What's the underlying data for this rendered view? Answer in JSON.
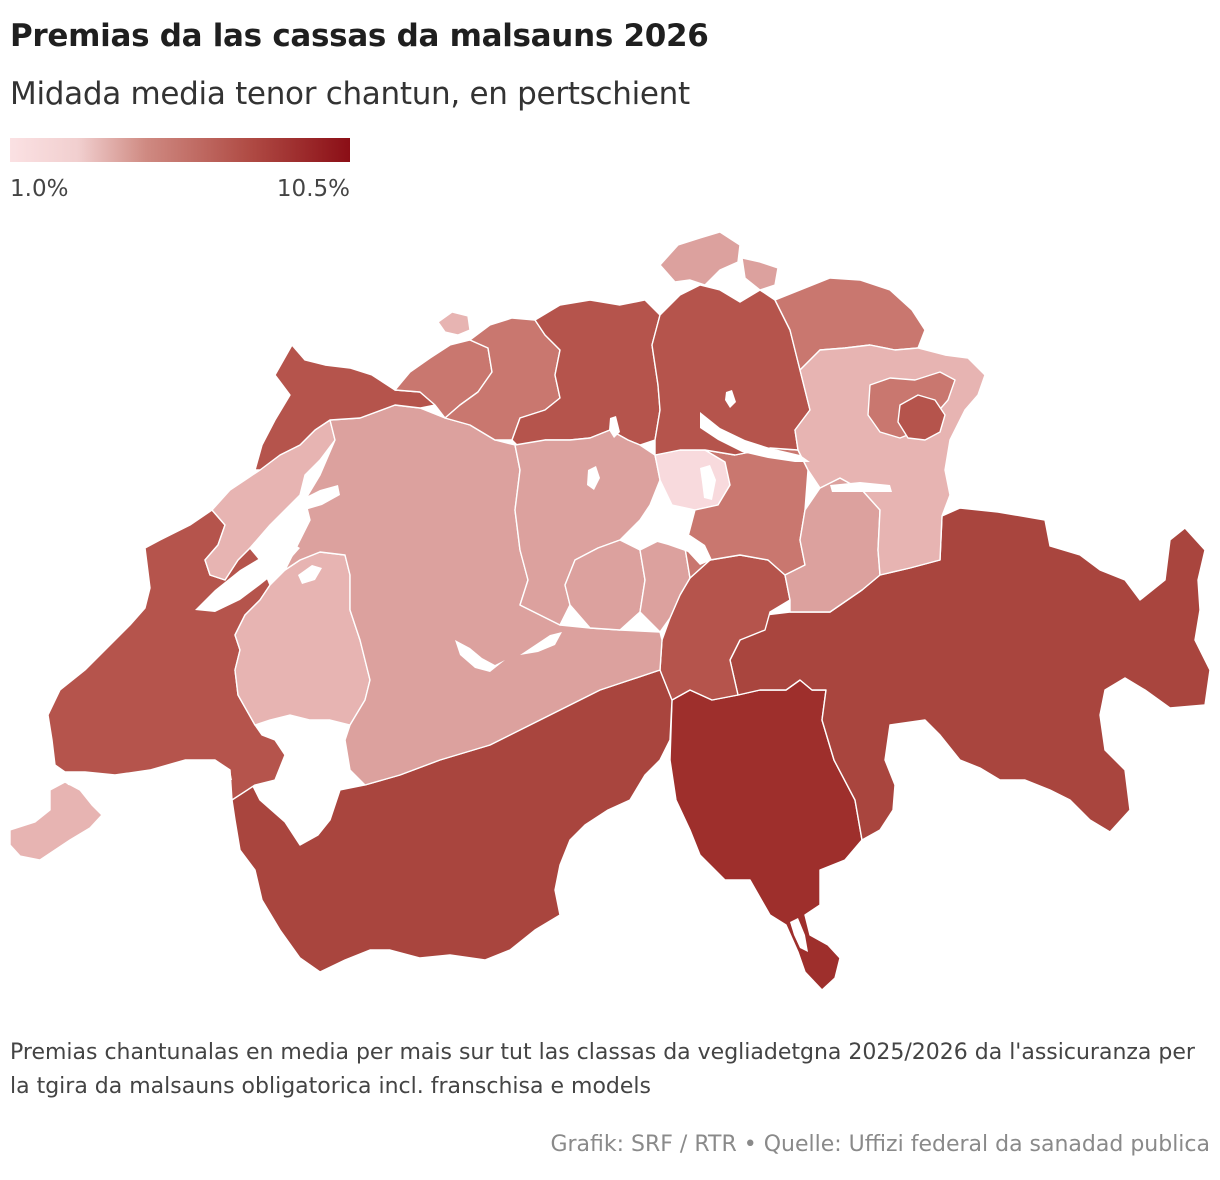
{
  "title": "Premias da las cassas da malsauns 2026",
  "subtitle": "Midada media tenor chantun, en pertschient",
  "legend": {
    "min_label": "1.0%",
    "max_label": "10.5%",
    "min_value": 1.0,
    "max_value": 10.5,
    "color_min": "#fbe1e3",
    "color_max": "#8b0e16"
  },
  "note": "Premias chantunalas en media per mais sur tut las classas da vegliadetgna 2025/2026 da l'assicuranza per la tgira da malsauns obligatorica incl. franschisa e models",
  "credit": "Grafik: SRF / RTR • Quelle: Uffizi federal da sanadad publica",
  "map_colors": {
    "lightest": "#f8dadd",
    "light": "#e7b4b2",
    "light_mid": "#dca19e",
    "mid": "#c9776f",
    "mid_dark": "#b5544c",
    "dark": "#a9453e",
    "darkest": "#9e2f2c",
    "lake": "#ffffff"
  },
  "regions": [
    {
      "name": "Schaffhausen",
      "color": "#dca19e"
    },
    {
      "name": "Basel-Stadt",
      "color": "#e7b4b2"
    },
    {
      "name": "Basel-Landschaft",
      "color": "#c9776f"
    },
    {
      "name": "Jura",
      "color": "#b5544c"
    },
    {
      "name": "Solothurn",
      "color": "#c9776f"
    },
    {
      "name": "Aargau",
      "color": "#b5544c"
    },
    {
      "name": "Zürich",
      "color": "#b5544c"
    },
    {
      "name": "Thurgau",
      "color": "#c9776f"
    },
    {
      "name": "St. Gallen",
      "color": "#e7b4b2"
    },
    {
      "name": "Appenzell Ausserrhoden",
      "color": "#c9776f"
    },
    {
      "name": "Appenzell Innerrhoden",
      "color": "#b5544c"
    },
    {
      "name": "Zug",
      "color": "#f8dadd"
    },
    {
      "name": "Schwyz",
      "color": "#c9776f"
    },
    {
      "name": "Glarus",
      "color": "#dca19e"
    },
    {
      "name": "Luzern",
      "color": "#dca19e"
    },
    {
      "name": "Obwalden",
      "color": "#dca19e"
    },
    {
      "name": "Nidwalden",
      "color": "#dca19e"
    },
    {
      "name": "Uri",
      "color": "#b5544c"
    },
    {
      "name": "Bern",
      "color": "#dca19e"
    },
    {
      "name": "Neuchâtel",
      "color": "#e7b4b2"
    },
    {
      "name": "Fribourg",
      "color": "#e7b4b2"
    },
    {
      "name": "Vaud",
      "color": "#b5544c"
    },
    {
      "name": "Genève",
      "color": "#e7b4b2"
    },
    {
      "name": "Valais",
      "color": "#a9453e"
    },
    {
      "name": "Ticino",
      "color": "#9e2f2c"
    },
    {
      "name": "Graubünden",
      "color": "#a9453e"
    }
  ]
}
